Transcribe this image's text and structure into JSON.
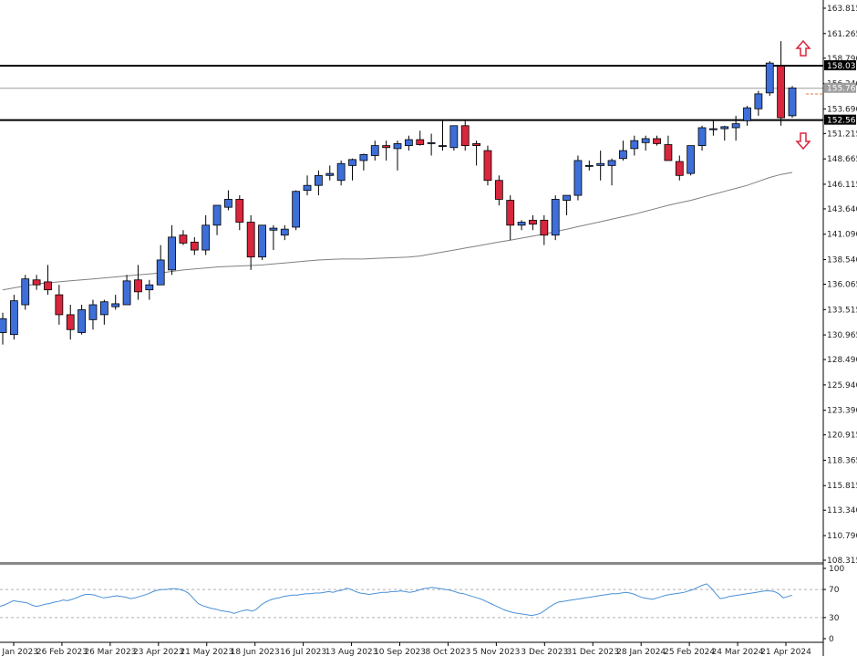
{
  "chart_data": [
    {
      "type": "candlestick",
      "ylim": [
        108.315,
        163.815
      ],
      "y_ticks": [
        "163.815",
        "161.265",
        "158.790",
        "156.240",
        "153.690",
        "151.215",
        "148.665",
        "146.115",
        "143.640",
        "141.090",
        "138.540",
        "136.065",
        "133.515",
        "130.965",
        "128.490",
        "125.940",
        "123.390",
        "120.915",
        "118.365",
        "115.815",
        "113.340",
        "110.790",
        "108.315"
      ],
      "x_ticks": [
        "29 Jan 2023",
        "26 Feb 2023",
        "26 Mar 2023",
        "23 Apr 2023",
        "21 May 2023",
        "18 Jun 2023",
        "16 Jul 2023",
        "13 Aug 2023",
        "10 Sep 2023",
        "8 Oct 2023",
        "5 Nov 2023",
        "3 Dec 2023",
        "31 Dec 2023",
        "28 Jan 2024",
        "25 Feb 2024",
        "24 Mar 2024",
        "21 Apr 2024"
      ],
      "levels": [
        {
          "value": 158.031,
          "label": "158.031",
          "color": "#000000"
        },
        {
          "value": 155.766,
          "label": "155.766",
          "color": "#9e9e9e"
        },
        {
          "value": 152.563,
          "label": "152.563",
          "color": "#000000"
        }
      ],
      "colors": {
        "up": "#3e6fd8",
        "down": "#d7263d",
        "ma": "#808080"
      },
      "candles": [
        [
          131.2,
          133.2,
          130.0,
          132.6
        ],
        [
          131.0,
          135.0,
          130.5,
          134.4
        ],
        [
          134.0,
          137.0,
          133.5,
          136.6
        ],
        [
          136.5,
          137.0,
          135.5,
          136.0
        ],
        [
          136.3,
          138.0,
          135.0,
          135.5
        ],
        [
          135.0,
          136.0,
          132.0,
          133.0
        ],
        [
          133.0,
          134.0,
          130.5,
          131.5
        ],
        [
          131.2,
          134.0,
          131.0,
          133.5
        ],
        [
          132.5,
          134.5,
          131.5,
          134.0
        ],
        [
          133.0,
          134.5,
          132.0,
          134.3
        ],
        [
          133.8,
          135.0,
          133.5,
          134.1
        ],
        [
          134.0,
          137.0,
          134.0,
          136.4
        ],
        [
          136.5,
          138.0,
          134.5,
          135.3
        ],
        [
          135.5,
          136.5,
          134.5,
          136.0
        ],
        [
          136.0,
          140.0,
          136.0,
          138.5
        ],
        [
          137.5,
          142.0,
          137.0,
          140.8
        ],
        [
          141.0,
          141.5,
          140.0,
          140.2
        ],
        [
          140.3,
          140.8,
          139.0,
          139.5
        ],
        [
          139.5,
          143.0,
          139.0,
          142.0
        ],
        [
          142.0,
          144.0,
          141.0,
          144.0
        ],
        [
          143.8,
          145.5,
          143.5,
          144.6
        ],
        [
          144.6,
          145.0,
          141.5,
          142.3
        ],
        [
          142.3,
          143.0,
          137.5,
          138.8
        ],
        [
          138.8,
          142.0,
          138.5,
          142.0
        ],
        [
          141.5,
          142.0,
          139.5,
          141.7
        ],
        [
          141.0,
          142.0,
          140.5,
          141.6
        ],
        [
          141.8,
          145.5,
          141.5,
          145.4
        ],
        [
          145.5,
          147.0,
          145.0,
          146.0
        ],
        [
          146.0,
          147.5,
          145.0,
          147.0
        ],
        [
          147.0,
          148.0,
          146.5,
          147.2
        ],
        [
          146.5,
          148.5,
          146.0,
          148.2
        ],
        [
          148.0,
          148.7,
          146.5,
          148.6
        ],
        [
          148.5,
          149.2,
          147.5,
          149.1
        ],
        [
          149.0,
          150.5,
          148.5,
          150.0
        ],
        [
          150.0,
          150.5,
          148.5,
          149.8
        ],
        [
          149.7,
          150.5,
          147.5,
          150.2
        ],
        [
          150.0,
          151.0,
          149.5,
          150.6
        ],
        [
          150.6,
          151.5,
          150.0,
          150.1
        ],
        [
          150.2,
          151.2,
          149.0,
          150.3
        ],
        [
          150.0,
          152.5,
          149.5,
          150.0
        ],
        [
          149.8,
          152.0,
          149.5,
          152.0
        ],
        [
          152.0,
          152.5,
          149.5,
          150.0
        ],
        [
          150.2,
          150.5,
          148.0,
          150.0
        ],
        [
          149.5,
          150.0,
          146.0,
          146.5
        ],
        [
          146.5,
          147.0,
          144.0,
          144.6
        ],
        [
          144.5,
          145.0,
          140.5,
          142.0
        ],
        [
          142.0,
          142.5,
          141.5,
          142.3
        ],
        [
          142.5,
          143.0,
          141.5,
          142.1
        ],
        [
          142.5,
          143.0,
          140.0,
          141.0
        ],
        [
          141.0,
          145.0,
          140.5,
          144.6
        ],
        [
          144.5,
          145.0,
          143.0,
          145.0
        ],
        [
          145.0,
          149.0,
          144.5,
          148.5
        ],
        [
          148.0,
          148.5,
          147.5,
          148.0
        ],
        [
          148.0,
          149.5,
          146.5,
          148.2
        ],
        [
          148.0,
          148.7,
          146.0,
          148.5
        ],
        [
          148.7,
          150.5,
          148.5,
          149.5
        ],
        [
          149.7,
          151.0,
          149.0,
          150.5
        ],
        [
          150.3,
          151.0,
          149.5,
          150.7
        ],
        [
          150.7,
          151.0,
          150.0,
          150.2
        ],
        [
          150.1,
          151.0,
          148.5,
          148.5
        ],
        [
          148.4,
          149.0,
          146.5,
          147.0
        ],
        [
          147.2,
          150.0,
          147.0,
          150.0
        ],
        [
          150.0,
          152.0,
          149.5,
          151.8
        ],
        [
          151.6,
          152.5,
          151.0,
          151.7
        ],
        [
          151.7,
          152.0,
          150.5,
          151.9
        ],
        [
          151.8,
          153.0,
          150.5,
          152.2
        ],
        [
          152.5,
          154.0,
          152.0,
          153.8
        ],
        [
          153.7,
          155.5,
          153.0,
          155.2
        ],
        [
          155.3,
          158.5,
          155.0,
          158.3
        ],
        [
          158.0,
          160.5,
          152.0,
          152.8
        ],
        [
          153.0,
          156.0,
          152.8,
          155.8
        ]
      ],
      "ma": [
        135.5,
        135.7,
        135.9,
        136.1,
        136.2,
        136.3,
        136.4,
        136.5,
        136.6,
        136.7,
        136.8,
        136.9,
        137.0,
        137.1,
        137.2,
        137.35,
        137.5,
        137.6,
        137.7,
        137.8,
        137.85,
        137.9,
        137.95,
        138.0,
        138.1,
        138.2,
        138.3,
        138.4,
        138.5,
        138.55,
        138.6,
        138.6,
        138.6,
        138.65,
        138.7,
        138.75,
        138.8,
        138.9,
        139.1,
        139.3,
        139.5,
        139.7,
        139.9,
        140.1,
        140.3,
        140.5,
        140.7,
        140.9,
        141.1,
        141.35,
        141.6,
        141.85,
        142.1,
        142.35,
        142.6,
        142.85,
        143.1,
        143.4,
        143.7,
        144.0,
        144.25,
        144.5,
        144.8,
        145.1,
        145.4,
        145.7,
        146.0,
        146.4,
        146.8,
        147.1,
        147.3
      ]
    },
    {
      "type": "line",
      "ylim": [
        0,
        100
      ],
      "y_ticks": [
        "100",
        "70",
        "30",
        "0"
      ],
      "levels": [
        70,
        30
      ],
      "series": [
        {
          "values": [
            46,
            48,
            51,
            54,
            53,
            52,
            51,
            48,
            46,
            47,
            49,
            50,
            52,
            53,
            55,
            54,
            56,
            58,
            61,
            63,
            63,
            62,
            60,
            58,
            59,
            60,
            61,
            60,
            59,
            57,
            58,
            60,
            62,
            64,
            67,
            69,
            70,
            70,
            71,
            71,
            70,
            68,
            64,
            57,
            50,
            47,
            45,
            43,
            42,
            40,
            39,
            38,
            36,
            38,
            40,
            41,
            39,
            42,
            48,
            52,
            55,
            57,
            58,
            60,
            61,
            62,
            62,
            63,
            64,
            64,
            65,
            65,
            66,
            67,
            66,
            68,
            69,
            72,
            70,
            67,
            65,
            64,
            63,
            64,
            65,
            66,
            66,
            67,
            67,
            68,
            67,
            66,
            67,
            69,
            71,
            72,
            73,
            72,
            71,
            70,
            69,
            67,
            65,
            64,
            62,
            60,
            58,
            56,
            53,
            50,
            47,
            44,
            41,
            39,
            37,
            36,
            35,
            34,
            33,
            34,
            36,
            40,
            45,
            49,
            52,
            53,
            54,
            55,
            56,
            57,
            58,
            59,
            60,
            61,
            62,
            63,
            64,
            64,
            65,
            66,
            65,
            63,
            60,
            58,
            57,
            56,
            58,
            60,
            62,
            63,
            64,
            65,
            66,
            68,
            70,
            73,
            76,
            78,
            72,
            64,
            57,
            58,
            60,
            61,
            62,
            63,
            64,
            65,
            66,
            67,
            68,
            68,
            67,
            64,
            58,
            60,
            62
          ]
        }
      ]
    }
  ]
}
